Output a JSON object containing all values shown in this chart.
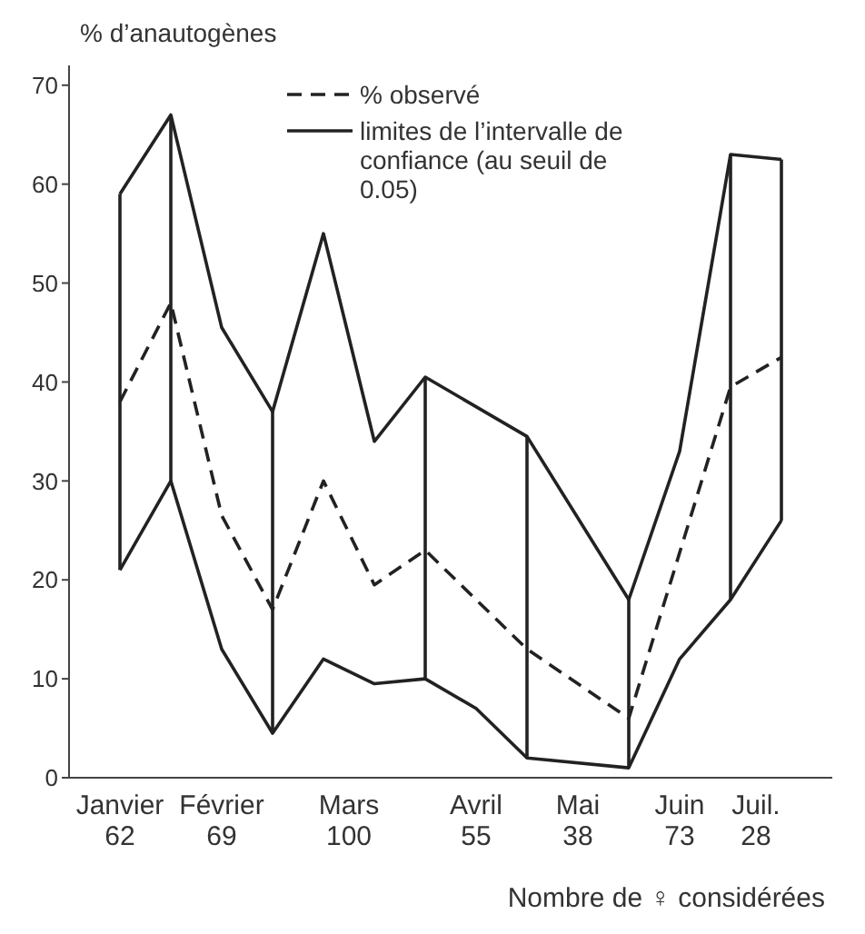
{
  "chart_data": {
    "type": "line",
    "ylabel": "% d’anautogènes",
    "xlabel": "Nombre de ♀ considérées",
    "categories": [
      null,
      null,
      "Janvier\n62",
      null,
      null,
      null,
      "Février\n69",
      null,
      null,
      null,
      null,
      "Mars\n100",
      null,
      null,
      null,
      null,
      "Avril\n55",
      null,
      null,
      null,
      "Mai\n38",
      null,
      null,
      null,
      "Juin\n73",
      null,
      null,
      "Juil.\n28",
      null,
      null,
      null
    ],
    "ylim": [
      0,
      72
    ],
    "yticks": [
      0,
      10,
      20,
      30,
      40,
      50,
      60,
      70
    ],
    "grid": false,
    "legend": "top",
    "marker": "none",
    "series": [
      {
        "name": "% observé",
        "color": "#222222",
        "line_style": "dashed",
        "values": [
          null,
          null,
          38,
          null,
          48,
          null,
          26.5,
          null,
          17,
          null,
          30,
          null,
          19.5,
          null,
          23,
          null,
          null,
          null,
          13,
          null,
          null,
          null,
          6,
          null,
          null,
          null,
          39.5,
          null,
          42.5,
          null,
          null
        ],
        "errors": [
          null,
          null,
          [
            21,
            59
          ],
          null,
          [
            30,
            67
          ],
          null,
          null,
          null,
          [
            4.5,
            37
          ],
          null,
          null,
          null,
          null,
          null,
          [
            10,
            40.5
          ],
          null,
          null,
          null,
          [
            2,
            34.5
          ],
          null,
          null,
          null,
          [
            1,
            18
          ],
          null,
          null,
          null,
          [
            18,
            63
          ],
          null,
          [
            26,
            62.5
          ],
          null,
          null
        ]
      },
      {
        "name": "limites de l’intervalle de confiance (au seuil de 0.05)",
        "color": "#222222",
        "line_style": "solid",
        "values": [
          null,
          null,
          59,
          null,
          67,
          null,
          45.5,
          null,
          37,
          null,
          55,
          null,
          34,
          null,
          40.5,
          null,
          null,
          null,
          34.5,
          null,
          null,
          null,
          18,
          null,
          33,
          null,
          63,
          null,
          62.5,
          null,
          null
        ]
      },
      {
        "color": "#222222",
        "line_style": "solid",
        "values": [
          null,
          null,
          21,
          null,
          30,
          null,
          13,
          null,
          4.5,
          null,
          12,
          null,
          9.5,
          null,
          10,
          null,
          7,
          null,
          2,
          null,
          null,
          null,
          1,
          null,
          12,
          null,
          18,
          null,
          26,
          null,
          null
        ]
      }
    ]
  }
}
